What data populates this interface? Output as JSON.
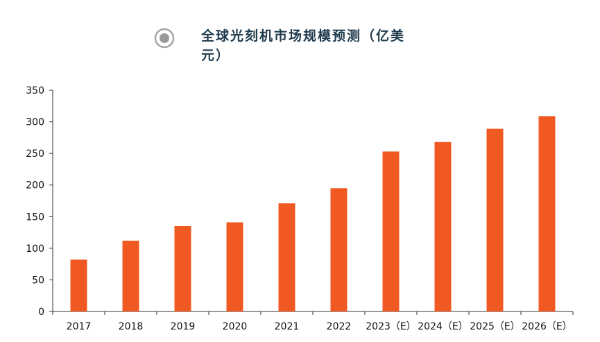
{
  "chart_data": {
    "type": "bar",
    "title": "全球光刻机市场规模预测（亿美元）",
    "categories": [
      "2017",
      "2018",
      "2019",
      "2020",
      "2021",
      "2022",
      "2023（E）",
      "2024（E）",
      "2025（E）",
      "2026（E）"
    ],
    "values": [
      82,
      112,
      135,
      141,
      171,
      195,
      253,
      268,
      289,
      309
    ],
    "xlabel": "",
    "ylabel": "",
    "ylim": [
      0,
      350
    ],
    "yticks": [
      0,
      50,
      100,
      150,
      200,
      250,
      300,
      350
    ],
    "grid": false,
    "legend": "none",
    "bar_color": "#f05a22",
    "axis_color": "#333333",
    "title_icon": "radio-circle-icon",
    "title_color": "#1f3a4d"
  }
}
